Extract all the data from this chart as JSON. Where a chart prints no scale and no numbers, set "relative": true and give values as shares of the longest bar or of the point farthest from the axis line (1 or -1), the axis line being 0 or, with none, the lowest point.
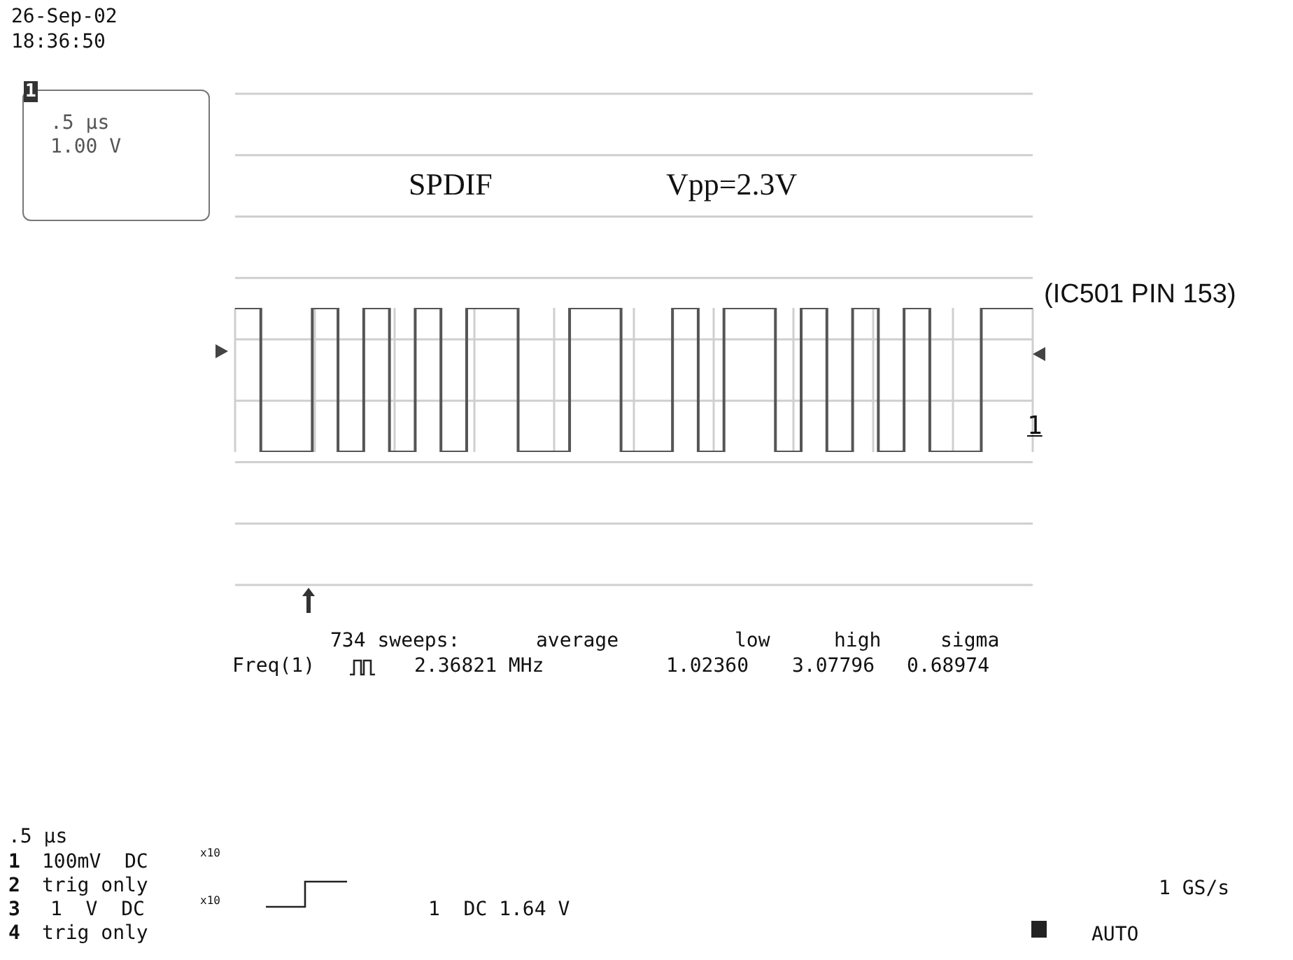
{
  "chart_data": {
    "type": "step",
    "relative": true,
    "grid": true,
    "color": "#555555",
    "categories": [
      null,
      null,
      null,
      null,
      null,
      null,
      null,
      null,
      null,
      null,
      null,
      null,
      null,
      null,
      null,
      null,
      null,
      null,
      null,
      null,
      null,
      null,
      null,
      null,
      null,
      null,
      null,
      null,
      null,
      null,
      null,
      null
    ],
    "values": [
      1,
      0,
      0,
      1,
      0,
      1,
      0,
      1,
      0,
      1,
      1,
      0,
      0,
      1,
      1,
      0,
      0,
      1,
      0,
      1,
      1,
      0,
      1,
      0,
      1,
      0,
      1,
      0,
      0,
      1,
      1,
      1
    ],
    "annotations": [
      "26-Sep-02",
      "18:36:50",
      "1",
      ".5 µs",
      "1.00 V",
      "SPDIF",
      "Vpp=2.3V",
      "(IC501 PIN 153)",
      "1",
      "734 sweeps:",
      "average",
      "low",
      "high",
      "sigma",
      "Freq(1)",
      "2.36821 MHz",
      "1.02360",
      "3.07796",
      "0.68974",
      ".5 µs",
      "1",
      "100mV  DC",
      "x10",
      "2",
      "trig only",
      "3",
      "1  V  DC",
      "x10",
      "4",
      "trig only",
      "1  DC 1.64 V",
      "1 GS/s",
      "AUTO"
    ]
  }
}
